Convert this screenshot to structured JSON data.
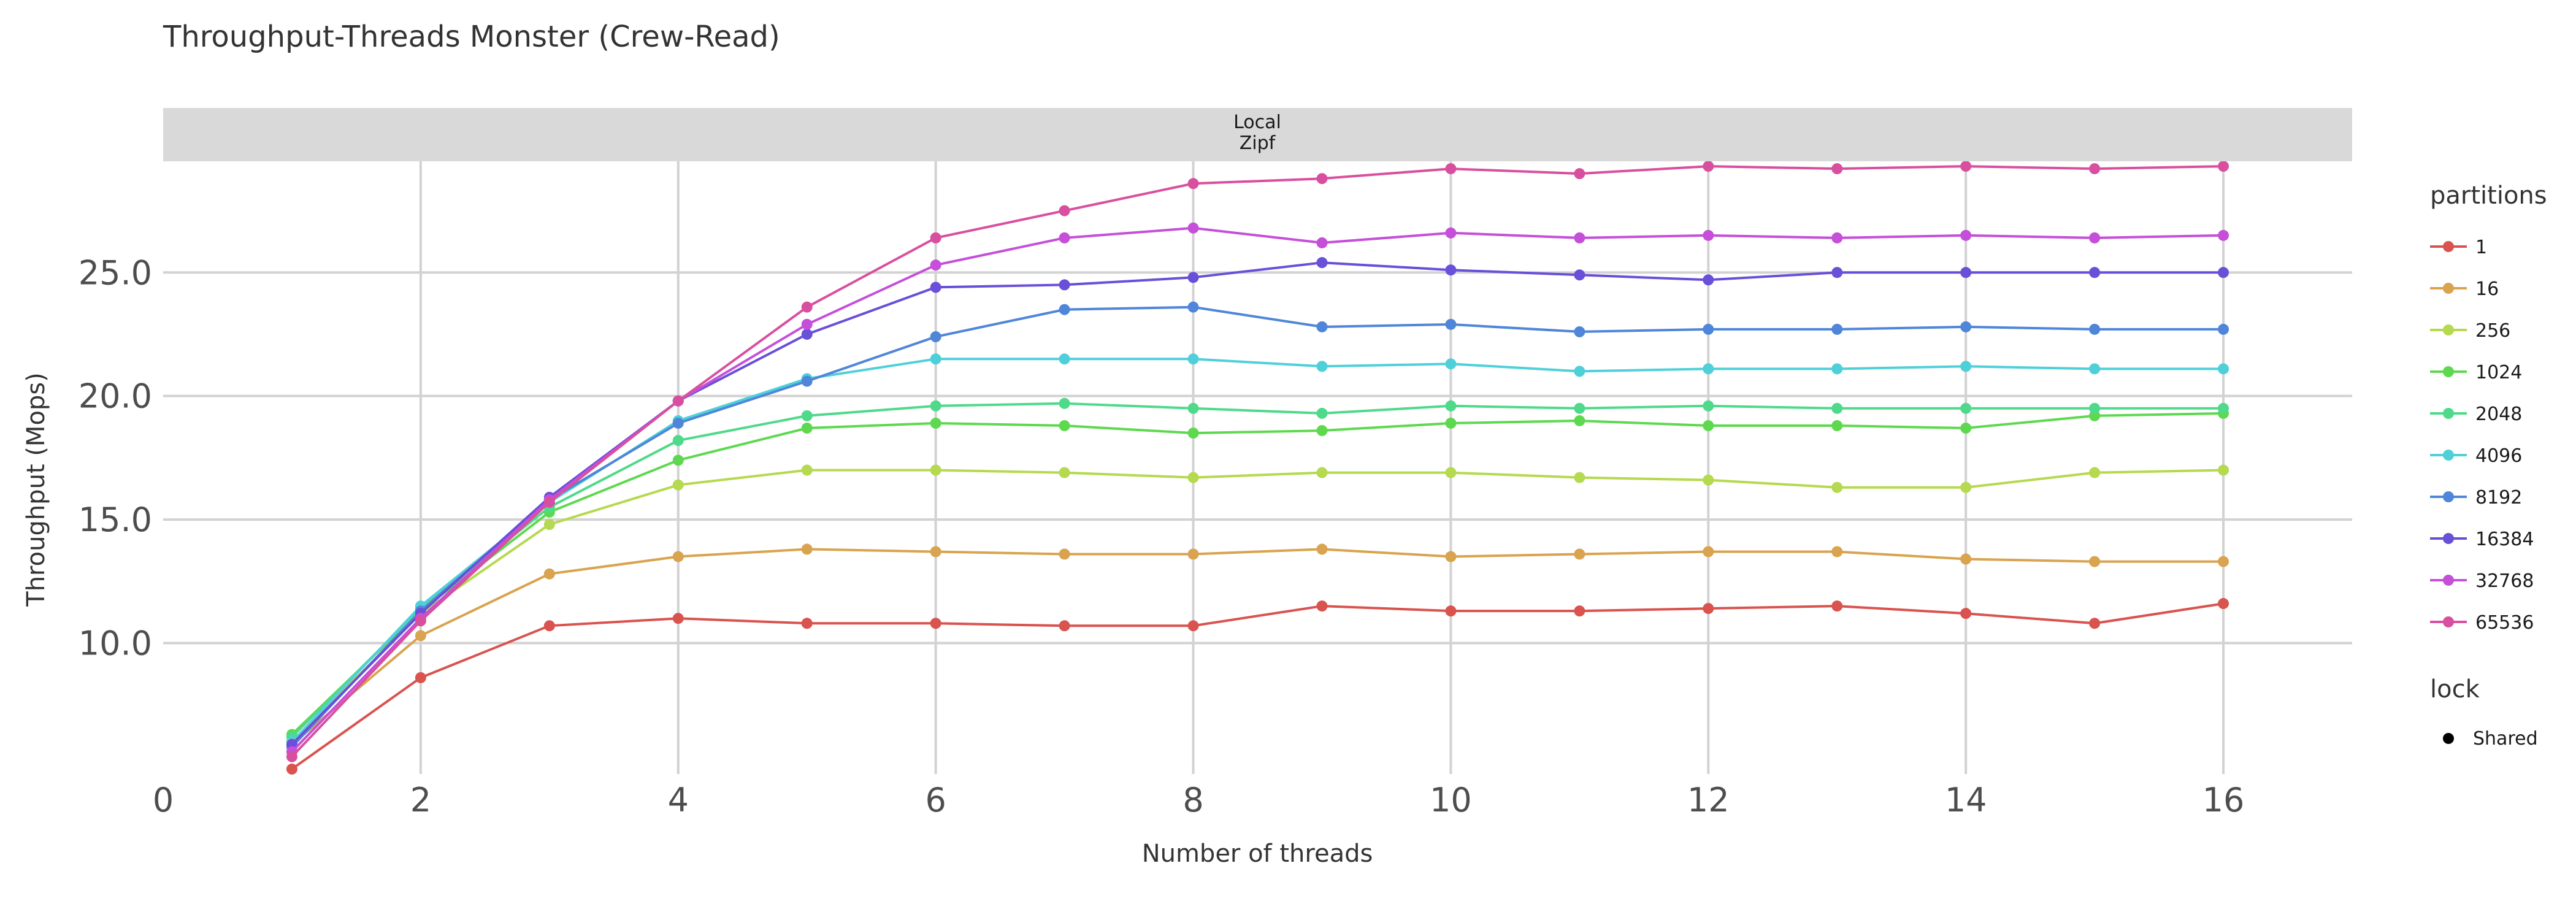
{
  "chart_data": {
    "type": "line",
    "title": "Throughput-Threads Monster (Crew-Read)",
    "facet_label": [
      "Local",
      "Zipf"
    ],
    "xlabel": "Number of threads",
    "ylabel": "Throughput (Mops)",
    "xlim": [
      0,
      17
    ],
    "ylim": [
      4.7,
      29.5
    ],
    "xticks": [
      0,
      2,
      4,
      6,
      8,
      10,
      12,
      14,
      16
    ],
    "xtick_labels": [
      "0",
      "2",
      "4",
      "6",
      "8",
      "10",
      "12",
      "14",
      "16"
    ],
    "yticks": [
      10,
      15,
      20,
      25
    ],
    "ytick_labels": [
      "10.0",
      "15.0",
      "20.0",
      "25.0"
    ],
    "grid": true,
    "legend_position": "right",
    "legend_title": "partitions",
    "shape_legend_title": "lock",
    "shape_legend_items": [
      "Shared"
    ],
    "x": [
      1,
      2,
      3,
      4,
      5,
      6,
      7,
      8,
      9,
      10,
      11,
      12,
      13,
      14,
      15,
      16
    ],
    "series": [
      {
        "name": "1",
        "color": "#D9534F",
        "values": [
          4.9,
          8.6,
          10.7,
          11.0,
          10.8,
          10.8,
          10.7,
          10.7,
          11.5,
          11.3,
          11.3,
          11.4,
          11.5,
          11.2,
          10.8,
          11.6
        ]
      },
      {
        "name": "16",
        "color": "#D9A34F",
        "values": [
          5.9,
          10.3,
          12.8,
          13.5,
          13.8,
          13.7,
          13.6,
          13.6,
          13.8,
          13.5,
          13.6,
          13.7,
          13.7,
          13.4,
          13.3,
          13.3
        ]
      },
      {
        "name": "256",
        "color": "#B5D94F",
        "values": [
          6.0,
          11.2,
          14.8,
          16.4,
          17.0,
          17.0,
          16.9,
          16.7,
          16.9,
          16.9,
          16.7,
          16.6,
          16.3,
          16.3,
          16.9,
          17.0
        ]
      },
      {
        "name": "1024",
        "color": "#5ED94F",
        "values": [
          6.3,
          11.3,
          15.3,
          17.4,
          18.7,
          18.9,
          18.8,
          18.5,
          18.6,
          18.9,
          19.0,
          18.8,
          18.8,
          18.7,
          19.2,
          19.3
        ]
      },
      {
        "name": "2048",
        "color": "#4FD98A",
        "values": [
          6.2,
          11.4,
          15.5,
          18.2,
          19.2,
          19.6,
          19.7,
          19.5,
          19.3,
          19.6,
          19.5,
          19.6,
          19.5,
          19.5,
          19.5,
          19.5
        ]
      },
      {
        "name": "4096",
        "color": "#4FD0D9",
        "values": [
          6.0,
          11.5,
          15.7,
          19.0,
          20.7,
          21.5,
          21.5,
          21.5,
          21.2,
          21.3,
          21.0,
          21.1,
          21.1,
          21.2,
          21.1,
          21.1
        ]
      },
      {
        "name": "8192",
        "color": "#4F86D9",
        "values": [
          5.8,
          11.3,
          15.8,
          18.9,
          20.6,
          22.4,
          23.5,
          23.6,
          22.8,
          22.9,
          22.6,
          22.7,
          22.7,
          22.8,
          22.7,
          22.7
        ]
      },
      {
        "name": "16384",
        "color": "#6A4FD9",
        "values": [
          5.9,
          11.2,
          15.9,
          19.8,
          22.5,
          24.4,
          24.5,
          24.8,
          25.4,
          25.1,
          24.9,
          24.7,
          25.0,
          25.0,
          25.0,
          25.0
        ]
      },
      {
        "name": "32768",
        "color": "#C54FD9",
        "values": [
          5.6,
          11.0,
          15.8,
          19.8,
          22.9,
          25.3,
          26.4,
          26.8,
          26.2,
          26.6,
          26.4,
          26.5,
          26.4,
          26.5,
          26.4,
          26.5
        ]
      },
      {
        "name": "65536",
        "color": "#D94F9F",
        "values": [
          5.4,
          10.9,
          15.7,
          19.8,
          23.6,
          26.4,
          27.5,
          28.6,
          28.8,
          29.2,
          29.0,
          29.3,
          29.2,
          29.3,
          29.2,
          29.3
        ]
      }
    ]
  }
}
